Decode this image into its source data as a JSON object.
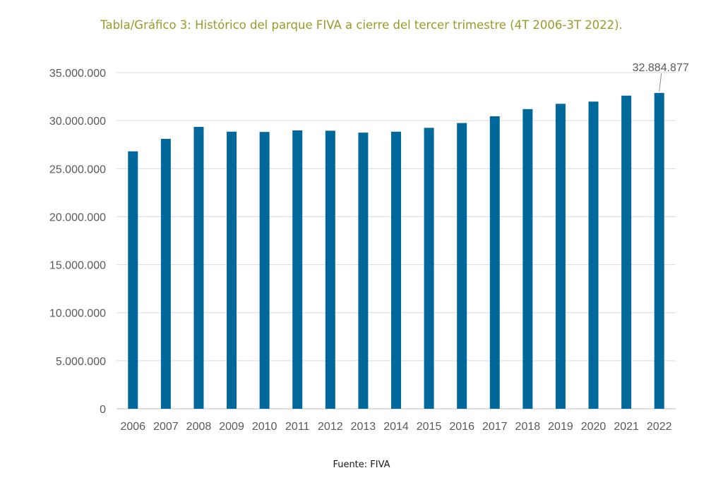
{
  "title": "Tabla/Gráfico 3: Histórico del parque FIVA a cierre del tercer trimestre (4T 2006-3T 2022).",
  "source": "Fuente: FIVA",
  "colors": {
    "bar": "#00689b",
    "title": "#9a9a2a",
    "grid": "#d9d9d9",
    "axis_text": "#595959"
  },
  "chart_data": {
    "type": "bar",
    "categories": [
      "2006",
      "2007",
      "2008",
      "2009",
      "2010",
      "2011",
      "2012",
      "2013",
      "2014",
      "2015",
      "2016",
      "2017",
      "2018",
      "2019",
      "2020",
      "2021",
      "2022"
    ],
    "values": [
      26800000,
      28100000,
      29350000,
      28850000,
      28820000,
      28980000,
      28950000,
      28750000,
      28850000,
      29250000,
      29750000,
      30450000,
      31200000,
      31750000,
      31980000,
      32600000,
      32884877
    ],
    "ylim": [
      0,
      35000000
    ],
    "yticks": [
      0,
      5000000,
      10000000,
      15000000,
      20000000,
      25000000,
      30000000,
      35000000
    ],
    "ytick_labels": [
      "0",
      "5.000.000",
      "10.000.000",
      "15.000.000",
      "20.000.000",
      "25.000.000",
      "30.000.000",
      "35.000.000"
    ],
    "annotations": [
      {
        "category": "2022",
        "text": "32.884.877"
      }
    ],
    "grid": true,
    "legend": "none"
  }
}
